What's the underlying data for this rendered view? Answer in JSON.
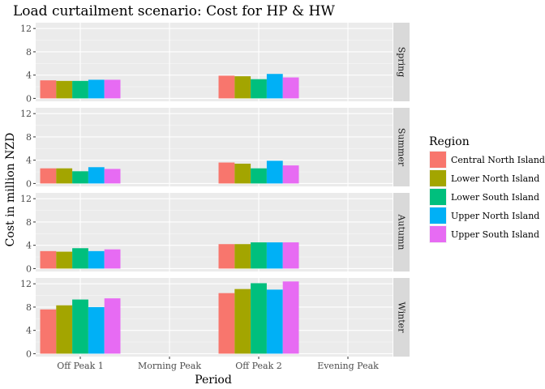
{
  "chart_data": {
    "type": "bar",
    "title": "Load curtailment scenario: Cost for HP & HW",
    "xlabel": "Period",
    "ylabel": "Cost in million NZD",
    "categories": [
      "Off Peak 1",
      "Morning Peak",
      "Off Peak 2",
      "Evening Peak"
    ],
    "facets": [
      "Spring",
      "Summer",
      "Autumn",
      "Winter"
    ],
    "yticks": [
      0,
      4,
      8,
      12
    ],
    "ylim": [
      -0.5,
      13
    ],
    "grid": true,
    "legend": {
      "title": "Region",
      "position": "right"
    },
    "series": [
      {
        "name": "Central North Island",
        "color": "#F8766D",
        "values": {
          "Spring": [
            3.1,
            null,
            3.9,
            null
          ],
          "Summer": [
            2.6,
            null,
            3.6,
            null
          ],
          "Autumn": [
            3.0,
            null,
            4.2,
            null
          ],
          "Winter": [
            7.6,
            null,
            10.4,
            null
          ]
        }
      },
      {
        "name": "Lower North Island",
        "color": "#A3A500",
        "values": {
          "Spring": [
            3.0,
            null,
            3.8,
            null
          ],
          "Summer": [
            2.6,
            null,
            3.4,
            null
          ],
          "Autumn": [
            2.9,
            null,
            4.2,
            null
          ],
          "Winter": [
            8.3,
            null,
            11.1,
            null
          ]
        }
      },
      {
        "name": "Lower South Island",
        "color": "#00BF7D",
        "values": {
          "Spring": [
            3.0,
            null,
            3.3,
            null
          ],
          "Summer": [
            2.1,
            null,
            2.6,
            null
          ],
          "Autumn": [
            3.5,
            null,
            4.5,
            null
          ],
          "Winter": [
            9.3,
            null,
            12.1,
            null
          ]
        }
      },
      {
        "name": "Upper North Island",
        "color": "#00B0F6",
        "values": {
          "Spring": [
            3.2,
            null,
            4.2,
            null
          ],
          "Summer": [
            2.8,
            null,
            3.9,
            null
          ],
          "Autumn": [
            3.0,
            null,
            4.5,
            null
          ],
          "Winter": [
            8.0,
            null,
            11.0,
            null
          ]
        }
      },
      {
        "name": "Upper South Island",
        "color": "#E76BF3",
        "values": {
          "Spring": [
            3.2,
            null,
            3.6,
            null
          ],
          "Summer": [
            2.5,
            null,
            3.1,
            null
          ],
          "Autumn": [
            3.3,
            null,
            4.5,
            null
          ],
          "Winter": [
            9.5,
            null,
            12.4,
            null
          ]
        }
      }
    ]
  },
  "colors": {
    "panel_background": "#EBEBEB",
    "strip_background": "#D9D9D9",
    "grid_major": "#FFFFFF",
    "text": "#000000",
    "tick_text": "#4D4D4D"
  }
}
